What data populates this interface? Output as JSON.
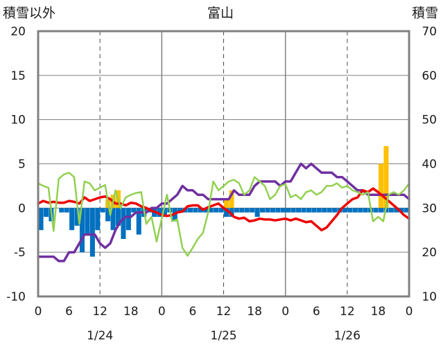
{
  "chart_data": {
    "type": "line",
    "title": "富山",
    "ylabel_left": "積雪以外",
    "ylabel_right": "積雪",
    "ylim_left": [
      -10,
      20
    ],
    "ylim_right": [
      10,
      70
    ],
    "yticks_left": [
      "-10",
      "-5",
      "0",
      "5",
      "10",
      "15",
      "20"
    ],
    "yticks_right": [
      "10",
      "20",
      "30",
      "40",
      "50",
      "60",
      "70"
    ],
    "xlim": [
      0,
      72
    ],
    "xticks": [
      "0",
      "6",
      "12",
      "18",
      "0",
      "6",
      "12",
      "18",
      "0",
      "6",
      "12",
      "18",
      "0"
    ],
    "date_labels": [
      "1/24",
      "1/25",
      "1/26"
    ],
    "grid": true,
    "colors": {
      "snow_depth": "#7030a0",
      "temperature": "#ee0000",
      "wind": "#92d050",
      "snowfall": "#ffc000",
      "negative_bar": "#0070c0",
      "frame": "#808080"
    },
    "series": [
      {
        "key": "snow_depth",
        "axis": "right",
        "x": [
          0,
          1,
          2,
          3,
          4,
          5,
          6,
          7,
          8,
          9,
          10,
          11,
          12,
          13,
          14,
          15,
          16,
          17,
          18,
          19,
          20,
          21,
          22,
          23,
          24,
          25,
          26,
          27,
          28,
          29,
          30,
          31,
          32,
          33,
          34,
          35,
          36,
          37,
          38,
          39,
          40,
          41,
          42,
          43,
          44,
          45,
          46,
          47,
          48,
          49,
          50,
          51,
          52,
          53,
          54,
          55,
          56,
          57,
          58,
          59,
          60,
          61,
          62,
          63,
          64,
          65,
          66,
          67,
          68,
          69,
          70,
          71,
          72
        ],
        "values": [
          19,
          19,
          19,
          19,
          18,
          18,
          20,
          20,
          22,
          24,
          24,
          24,
          22,
          21,
          22,
          25,
          27,
          28,
          28,
          29,
          29,
          29,
          30,
          30,
          31,
          31,
          32,
          33,
          35,
          34,
          34,
          33,
          33,
          32,
          32,
          32,
          32,
          32,
          34,
          33,
          33,
          33,
          35,
          36,
          36,
          36,
          36,
          35,
          36,
          36,
          38,
          40,
          39,
          40,
          39,
          38,
          38,
          38,
          37,
          37,
          36,
          35,
          34,
          34,
          33,
          33,
          33,
          33,
          33,
          33,
          33,
          33,
          32
        ]
      },
      {
        "key": "temperature",
        "axis": "left",
        "x": [
          0,
          1,
          2,
          3,
          4,
          5,
          6,
          7,
          8,
          9,
          10,
          11,
          12,
          13,
          14,
          15,
          16,
          17,
          18,
          19,
          20,
          21,
          22,
          23,
          24,
          25,
          26,
          27,
          28,
          29,
          30,
          31,
          32,
          33,
          34,
          35,
          36,
          37,
          38,
          39,
          40,
          41,
          42,
          43,
          44,
          45,
          46,
          47,
          48,
          49,
          50,
          51,
          52,
          53,
          54,
          55,
          56,
          57,
          58,
          59,
          60,
          61,
          62,
          63,
          64,
          65,
          66,
          67,
          68,
          69,
          70,
          71,
          72
        ],
        "values": [
          0.5,
          0.8,
          0.6,
          0.7,
          0.6,
          0.6,
          0.8,
          0.7,
          0.5,
          1.2,
          0.8,
          1.0,
          1.2,
          1.3,
          1.0,
          0.5,
          0.5,
          0.3,
          0.6,
          0.5,
          0.2,
          0.0,
          -0.3,
          -0.5,
          -0.8,
          -0.9,
          -0.8,
          -0.5,
          -0.4,
          0.2,
          0.3,
          0.3,
          -0.2,
          0.1,
          0.3,
          0.5,
          0.0,
          -0.4,
          -1.0,
          -1.2,
          -1.1,
          -1.5,
          -1.4,
          -1.2,
          -1.3,
          -1.3,
          -1.4,
          -1.3,
          -1.2,
          -1.4,
          -1.2,
          -1.4,
          -1.6,
          -1.5,
          -2.0,
          -2.5,
          -2.2,
          -1.5,
          -0.8,
          0.0,
          0.5,
          1.0,
          1.2,
          2.0,
          1.8,
          2.2,
          1.8,
          1.3,
          0.8,
          0.3,
          -0.2,
          -0.8,
          -1.2
        ]
      },
      {
        "key": "wind",
        "axis": "left",
        "x": [
          0,
          1,
          2,
          3,
          4,
          5,
          6,
          7,
          8,
          9,
          10,
          11,
          12,
          13,
          14,
          15,
          16,
          17,
          18,
          19,
          20,
          21,
          22,
          23,
          24,
          25,
          26,
          27,
          28,
          29,
          30,
          31,
          32,
          33,
          34,
          35,
          36,
          37,
          38,
          39,
          40,
          41,
          42,
          43,
          44,
          45,
          46,
          47,
          48,
          49,
          50,
          51,
          52,
          53,
          54,
          55,
          56,
          57,
          58,
          59,
          60,
          61,
          62,
          63,
          64,
          65,
          66,
          67,
          68,
          69,
          70,
          71,
          72
        ],
        "values": [
          2.8,
          2.5,
          2.3,
          -2.6,
          3.3,
          3.8,
          4.0,
          3.5,
          -1.8,
          3.0,
          2.8,
          2.0,
          2.3,
          2.6,
          -0.8,
          2.0,
          0.0,
          1.2,
          1.5,
          1.7,
          1.8,
          -1.8,
          -1.0,
          -3.8,
          -1.2,
          1.5,
          -1.5,
          -1.3,
          -4.5,
          -5.4,
          -4.5,
          -3.5,
          -2.8,
          -0.5,
          3.0,
          2.0,
          2.5,
          3.0,
          3.2,
          2.8,
          1.5,
          2.0,
          3.5,
          3.0,
          2.5,
          1.0,
          1.5,
          2.5,
          2.7,
          1.2,
          1.5,
          1.0,
          1.8,
          2.0,
          1.5,
          1.8,
          2.5,
          2.5,
          2.8,
          2.3,
          2.5,
          2.0,
          1.8,
          1.5,
          1.8,
          -1.5,
          -1.0,
          -1.5,
          1.5,
          1.8,
          1.5,
          2.0,
          2.8
        ]
      },
      {
        "key": "snowfall",
        "axis": "left",
        "kind": "bar",
        "x": [
          13,
          14,
          15,
          36,
          37,
          66,
          67
        ],
        "values": [
          1.0,
          1.5,
          2.0,
          1.0,
          2.0,
          5.0,
          7.0
        ]
      },
      {
        "key": "negative_bar",
        "axis": "left",
        "kind": "bar",
        "x": [
          0,
          1,
          2,
          4,
          5,
          6,
          7,
          8,
          9,
          10,
          11,
          12,
          13,
          14,
          15,
          16,
          17,
          18,
          19,
          20,
          21,
          22,
          23,
          24,
          25,
          26,
          27,
          28,
          29,
          30,
          31,
          32,
          33,
          34,
          35,
          36,
          37,
          38,
          39,
          40,
          41,
          42,
          43,
          44,
          45,
          46,
          47,
          48,
          49,
          50,
          51,
          52,
          53,
          54,
          55,
          56,
          57,
          58,
          59,
          60,
          61,
          62,
          63,
          64,
          65,
          66,
          67,
          68,
          69,
          70,
          71
        ],
        "values": [
          -2.5,
          -1.0,
          -1.5,
          -0.5,
          -0.5,
          -2.5,
          -2.0,
          -5.0,
          -3.0,
          -5.5,
          -2.5,
          -0.5,
          -1.5,
          -2.5,
          -2.0,
          -3.5,
          -2.5,
          -0.5,
          -3.0,
          -1.0,
          -0.5,
          -1.0,
          -1.0,
          -1.0,
          -0.5,
          -1.5,
          -0.5,
          -0.5,
          -0.5,
          -0.5,
          -0.5,
          -0.5,
          -0.5,
          -0.5,
          -0.5,
          -1.0,
          -1.0,
          -0.5,
          -0.5,
          -0.5,
          -0.5,
          -1.0,
          -0.5,
          -0.5,
          -0.5,
          -0.5,
          -0.5,
          -0.5,
          -0.5,
          -0.5,
          -0.5,
          -0.5,
          -0.5,
          -0.5,
          -0.5,
          -0.5,
          -0.5,
          -0.5,
          -0.5,
          -0.5,
          -0.5,
          -0.5,
          -0.5,
          -0.5,
          -0.5,
          -0.5,
          -0.5,
          -0.5,
          -0.5,
          -0.5,
          -0.5
        ]
      }
    ]
  }
}
